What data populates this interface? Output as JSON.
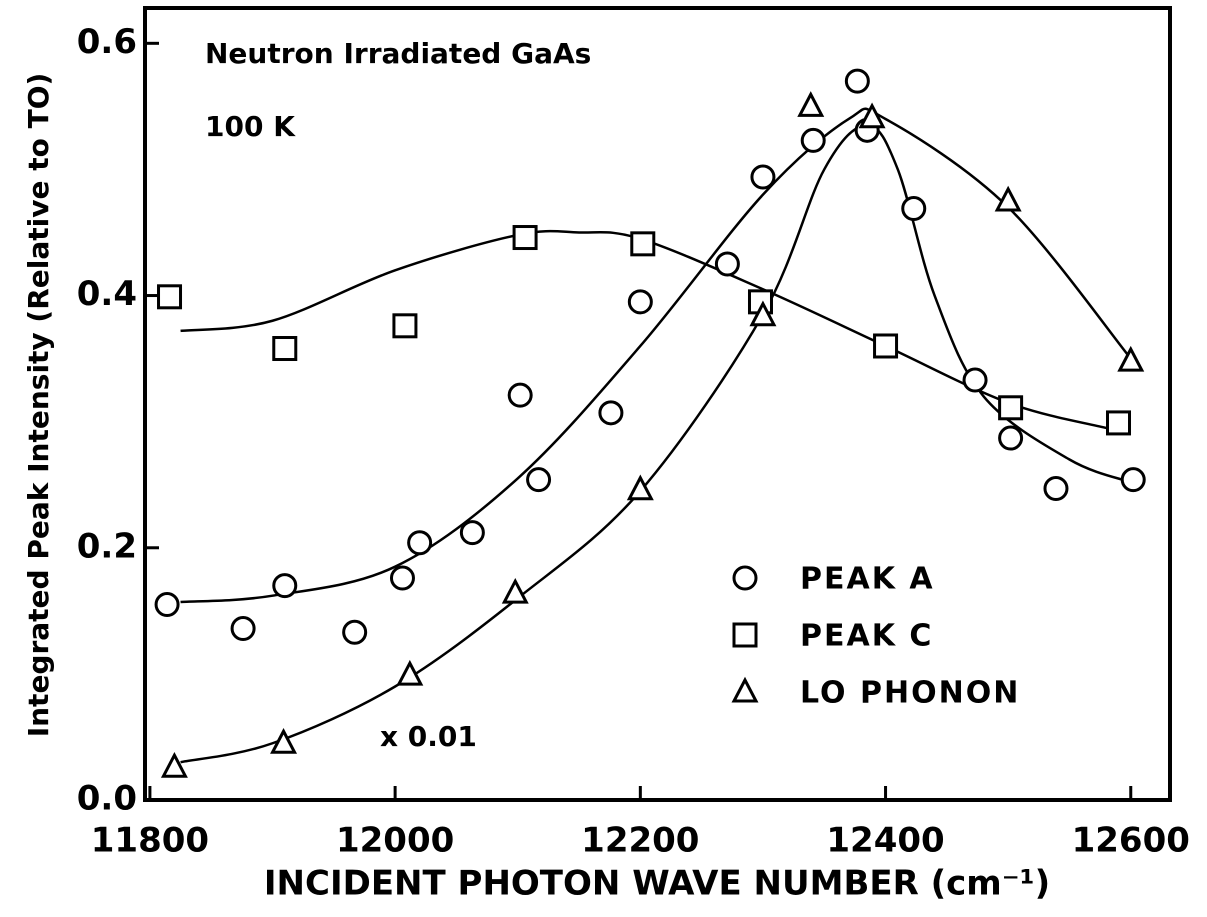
{
  "chart_data": {
    "type": "scatter",
    "xlabel": "INCIDENT PHOTON WAVE NUMBER (cm⁻¹)",
    "ylabel": "Integrated Peak Intensity (Relative to TO)",
    "annotations": [
      "Neutron Irradiated GaAs",
      "100 K",
      "x 0.01"
    ],
    "xlim": [
      11796,
      12632
    ],
    "ylim": [
      0,
      0.628
    ],
    "xticks": [
      11800,
      12000,
      12200,
      12400,
      12600
    ],
    "yticks": [
      {
        "value": 0,
        "label": "0.0"
      },
      0.2,
      0.4,
      0.6
    ],
    "legend": "lower right",
    "series": [
      {
        "name": "PEAK A",
        "marker": "circle",
        "color": "#000000",
        "x": [
          11814,
          11876,
          11910,
          11967,
          12006,
          12020,
          12063,
          12102,
          12117,
          12176,
          12200,
          12271,
          12300,
          12341,
          12385,
          12377,
          12423,
          12473,
          12502,
          12539,
          12602
        ],
        "values": [
          0.155,
          0.136,
          0.17,
          0.133,
          0.176,
          0.204,
          0.212,
          0.321,
          0.254,
          0.307,
          0.395,
          0.425,
          0.494,
          0.523,
          0.531,
          0.57,
          0.469,
          0.333,
          0.287,
          0.247,
          0.254
        ]
      },
      {
        "name": "PEAK C",
        "marker": "square",
        "color": "#000000",
        "x": [
          11816,
          11910,
          12008,
          12106,
          12202,
          12298,
          12400,
          12502,
          12590
        ],
        "values": [
          0.399,
          0.358,
          0.376,
          0.446,
          0.441,
          0.395,
          0.36,
          0.311,
          0.299
        ]
      },
      {
        "name": "LO PHONON",
        "marker": "triangle",
        "color": "#000000",
        "x": [
          11820,
          11909,
          12012,
          12098,
          12200,
          12300,
          12339,
          12389,
          12500,
          12600
        ],
        "values": [
          0.026,
          0.045,
          0.099,
          0.164,
          0.246,
          0.384,
          0.55,
          0.541,
          0.475,
          0.348
        ]
      }
    ],
    "curves": [
      {
        "x": [
          11825,
          11900,
          12000,
          12100,
          12200,
          12300,
          12370,
          12400,
          12500,
          12600
        ],
        "y": [
          0.157,
          0.162,
          0.185,
          0.255,
          0.36,
          0.48,
          0.54,
          0.54,
          0.47,
          0.35
        ]
      },
      {
        "x": [
          11825,
          11900,
          12000,
          12100,
          12200,
          12300,
          12350,
          12385,
          12410,
          12440,
          12480,
          12550,
          12600
        ],
        "y": [
          0.03,
          0.045,
          0.09,
          0.16,
          0.245,
          0.385,
          0.5,
          0.535,
          0.5,
          0.4,
          0.32,
          0.27,
          0.252
        ]
      },
      {
        "x": [
          11825,
          11900,
          12000,
          12100,
          12150,
          12200,
          12300,
          12400,
          12500,
          12580
        ],
        "y": [
          0.372,
          0.38,
          0.42,
          0.448,
          0.45,
          0.445,
          0.405,
          0.36,
          0.315,
          0.295
        ]
      }
    ]
  }
}
